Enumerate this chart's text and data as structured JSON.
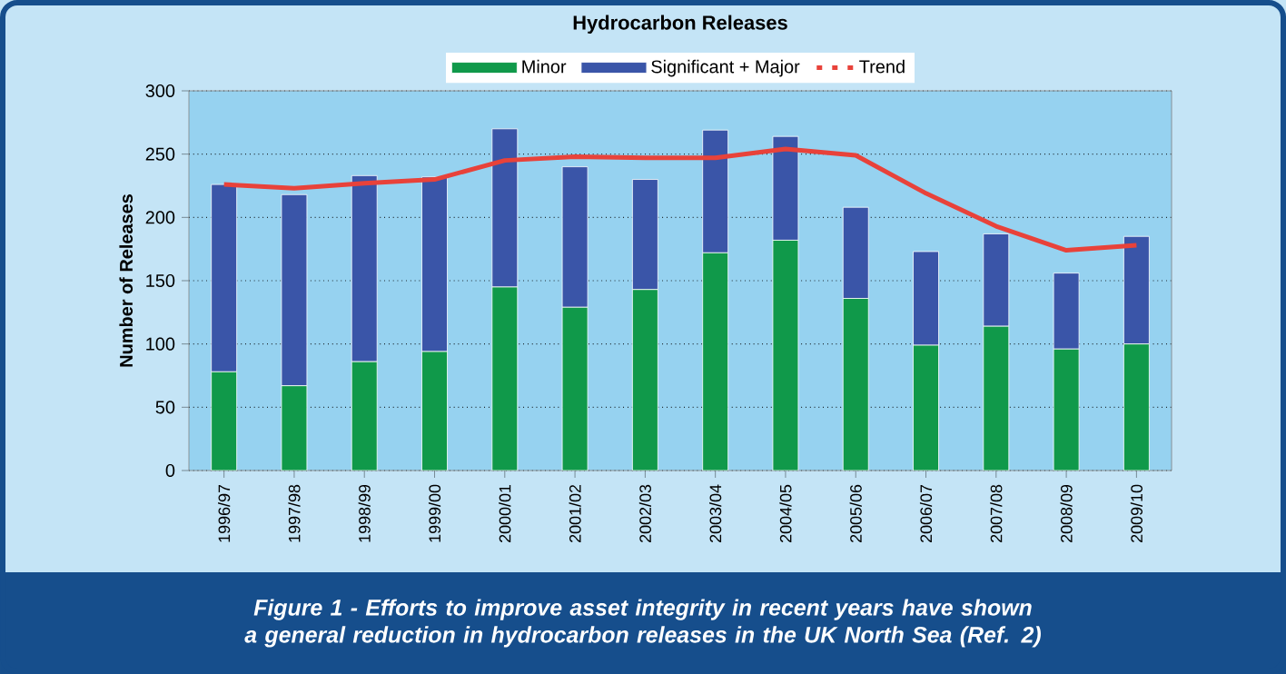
{
  "chart_data": {
    "type": "bar",
    "title": "Hydrocarbon Releases",
    "ylabel": "Number of Releases",
    "categories": [
      "1996/97",
      "1997/98",
      "1998/99",
      "1999/00",
      "2000/01",
      "2001/02",
      "2002/03",
      "2003/04",
      "2004/05",
      "2005/06",
      "2006/07",
      "2007/08",
      "2008/09",
      "2009/10"
    ],
    "stacked": true,
    "series": [
      {
        "name": "Minor",
        "color": "#10994a",
        "values": [
          78,
          67,
          86,
          94,
          145,
          129,
          143,
          172,
          182,
          136,
          99,
          114,
          96,
          100
        ]
      },
      {
        "name": "Significant + Major",
        "color": "#3a55a8",
        "values": [
          148,
          151,
          147,
          138,
          125,
          111,
          87,
          97,
          82,
          72,
          74,
          73,
          60,
          85
        ]
      },
      {
        "name": "Trend",
        "type": "line",
        "color": "#e8423a",
        "values": [
          226,
          223,
          227,
          230,
          245,
          248,
          247,
          247,
          254,
          249,
          219,
          193,
          174,
          178
        ]
      }
    ],
    "ylim": [
      0,
      300
    ],
    "yticks": [
      0,
      50,
      100,
      150,
      200,
      250,
      300
    ],
    "grid": "y",
    "legend": "top",
    "annotations": [
      "Figure 1 - Efforts to improve asset integrity in recent years have shown a general reduction in hydrocarbon releases in the UK North Sea (Ref. 2)"
    ]
  }
}
